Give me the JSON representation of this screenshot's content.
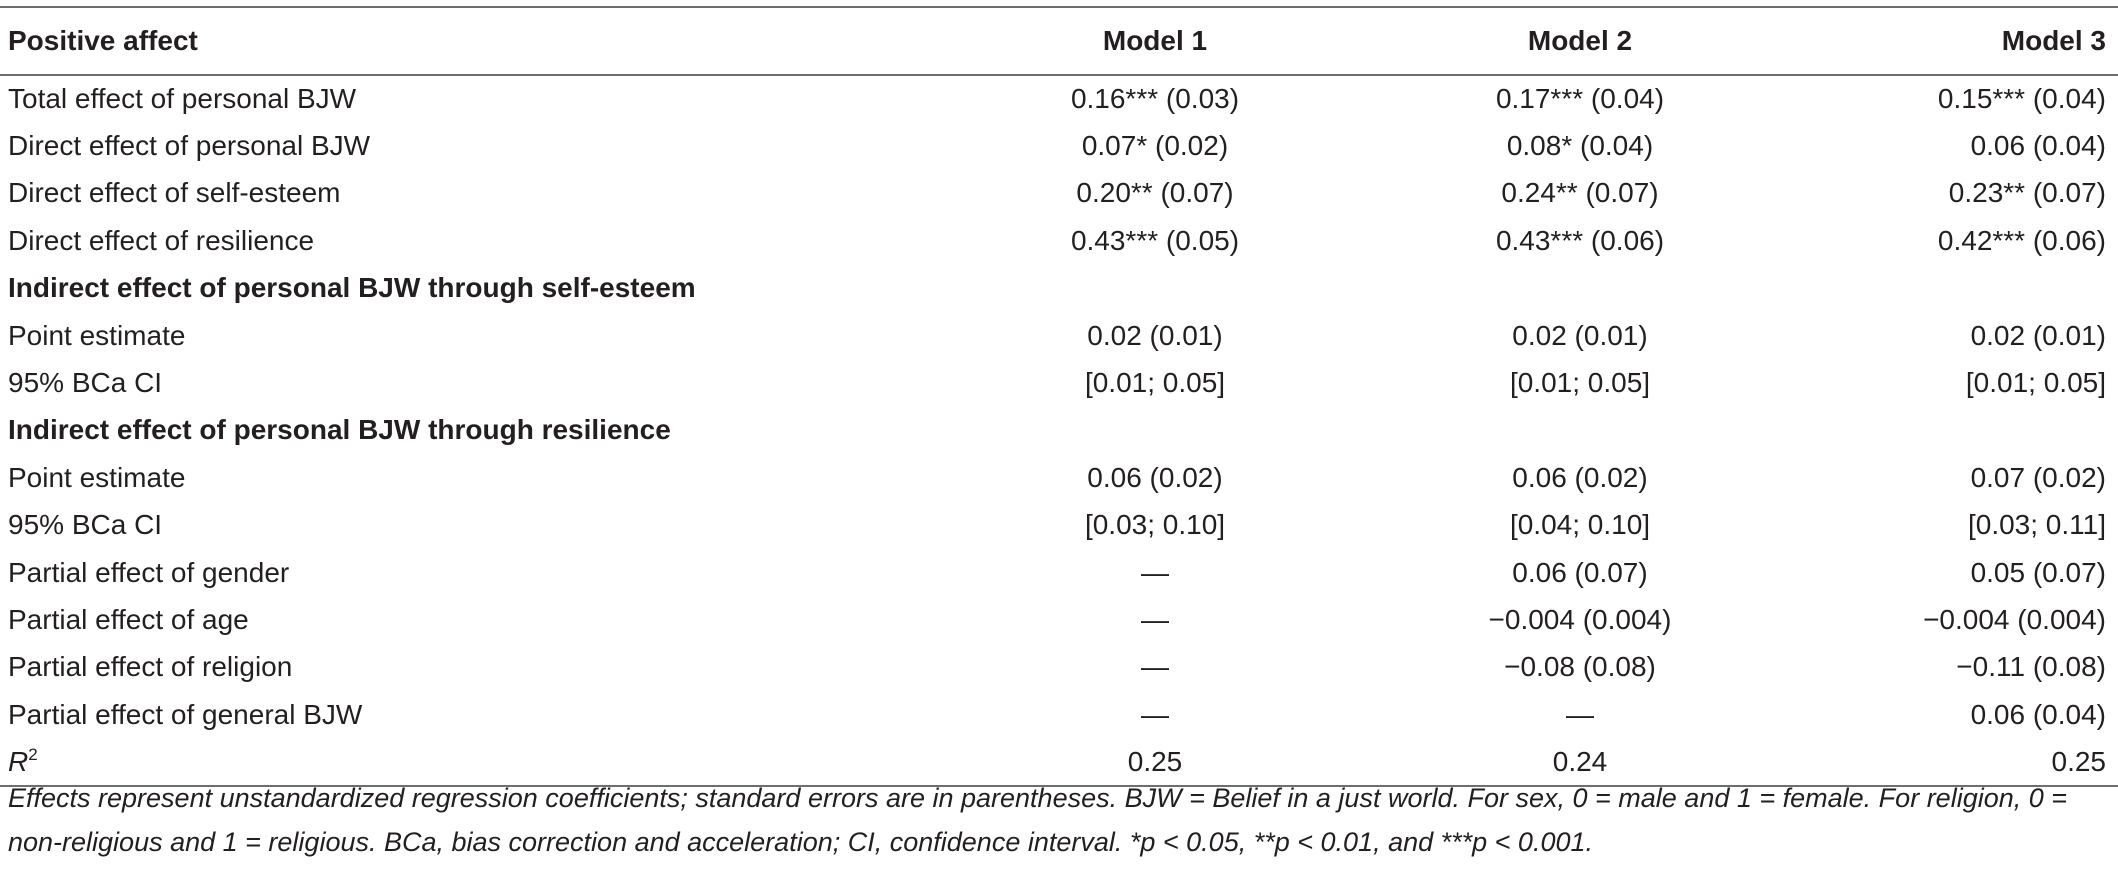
{
  "table": {
    "header": [
      "Positive affect",
      "Model 1",
      "Model 2",
      "Model 3"
    ],
    "rows": [
      {
        "label": "Total effect of personal BJW",
        "m1": "0.16*** (0.03)",
        "m2": "0.17*** (0.04)",
        "m3": "0.15*** (0.04)"
      },
      {
        "label": "Direct effect of personal BJW",
        "m1": "0.07* (0.02)",
        "m2": "0.08* (0.04)",
        "m3": "0.06 (0.04)"
      },
      {
        "label": "Direct effect of self-esteem",
        "m1": "0.20** (0.07)",
        "m2": "0.24** (0.07)",
        "m3": "0.23** (0.07)"
      },
      {
        "label": "Direct effect of resilience",
        "m1": "0.43*** (0.05)",
        "m2": "0.43*** (0.06)",
        "m3": "0.42*** (0.06)"
      },
      {
        "label": "Indirect effect of personal BJW through self-esteem",
        "section": true
      },
      {
        "label": "Point estimate",
        "m1": "0.02 (0.01)",
        "m2": "0.02 (0.01)",
        "m3": "0.02 (0.01)"
      },
      {
        "label": "95% BCa CI",
        "m1": "[0.01; 0.05]",
        "m2": "[0.01; 0.05]",
        "m3": "[0.01; 0.05]"
      },
      {
        "label": "Indirect effect of personal BJW through resilience",
        "section": true
      },
      {
        "label": "Point estimate",
        "m1": "0.06 (0.02)",
        "m2": "0.06 (0.02)",
        "m3": "0.07 (0.02)"
      },
      {
        "label": "95% BCa CI",
        "m1": "[0.03; 0.10]",
        "m2": "[0.04; 0.10]",
        "m3": "[0.03; 0.11]"
      },
      {
        "label": "Partial effect of gender",
        "m1": "—",
        "m2": "0.06 (0.07)",
        "m3": "0.05 (0.07)"
      },
      {
        "label": "Partial effect of age",
        "m1": "—",
        "m2": "−0.004 (0.004)",
        "m3": "−0.004 (0.004)"
      },
      {
        "label": "Partial effect of religion",
        "m1": "—",
        "m2": "−0.08 (0.08)",
        "m3": "−0.11 (0.08)"
      },
      {
        "label": "Partial effect of general BJW",
        "m1": "—",
        "m2": "—",
        "m3": "0.06 (0.04)"
      },
      {
        "label": "R",
        "label_sup": "2",
        "m1": "0.25",
        "m2": "0.24",
        "m3": "0.25"
      }
    ]
  },
  "footnote": "Effects represent unstandardized regression coefficients; standard errors are in parentheses. BJW = Belief in a just world. For sex, 0 = male and 1 = female. For religion, 0 = non-religious and 1 = religious. BCa, bias correction and acceleration; CI, confidence interval. *p < 0.05, **p < 0.01, and ***p < 0.001."
}
